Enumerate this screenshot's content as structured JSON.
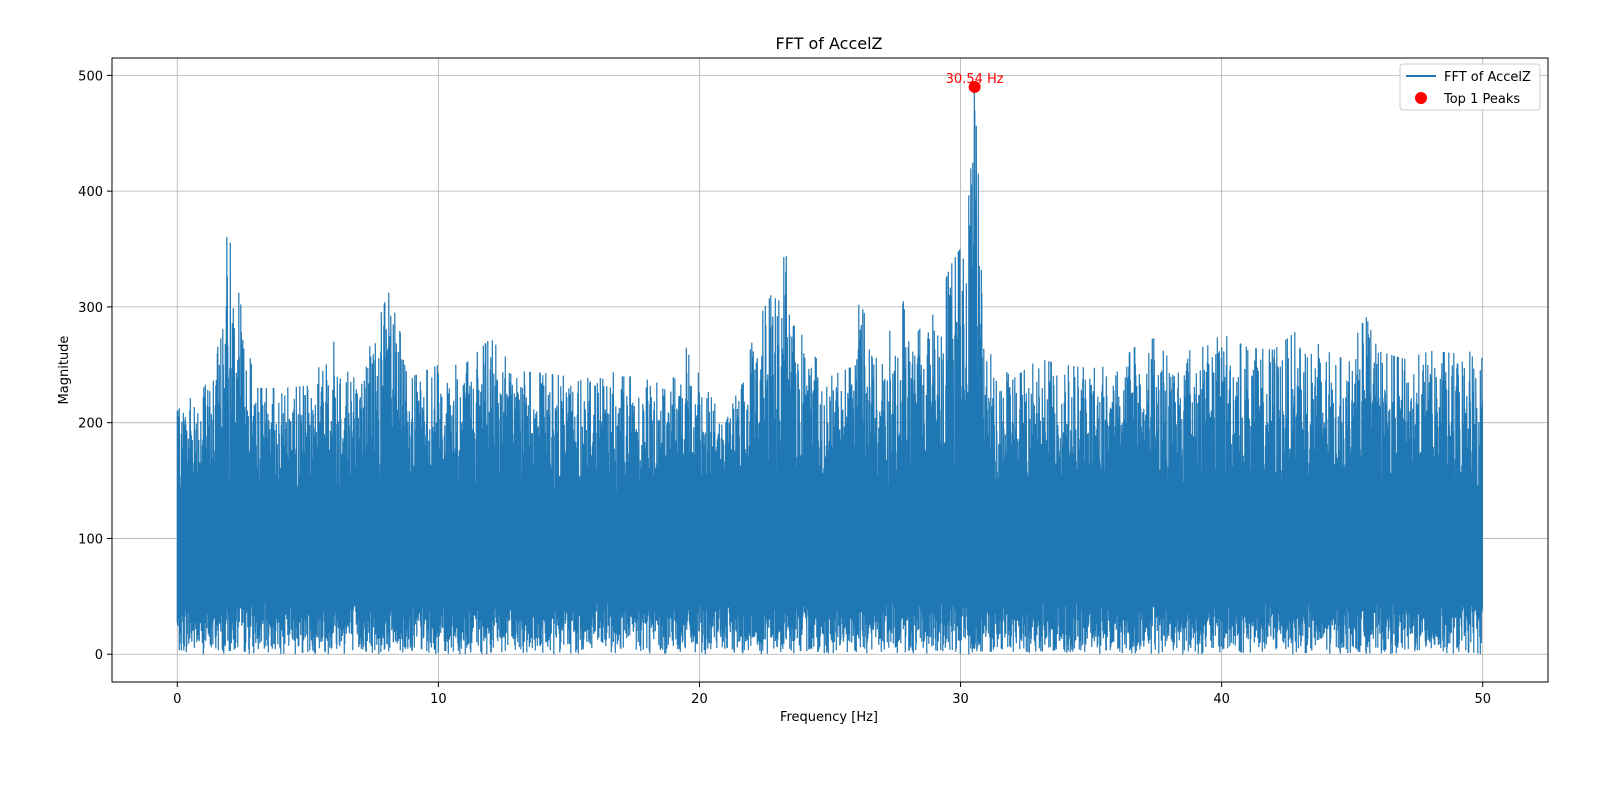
{
  "chart_data": {
    "type": "line",
    "title": "FFT of AccelZ",
    "xlabel": "Frequency [Hz]",
    "ylabel": "Magnitude",
    "xlim": [
      -2.5,
      52.5
    ],
    "ylim": [
      -24,
      515
    ],
    "xticks": [
      0,
      10,
      20,
      30,
      40,
      50
    ],
    "yticks": [
      0,
      100,
      200,
      300,
      400,
      500
    ],
    "grid": true,
    "legend_position": "top-right",
    "series": [
      {
        "name": "FFT of AccelZ",
        "color": "#1f77b4",
        "x_start": 0,
        "x_end": 50,
        "noise_floor": [
          0,
          100
        ],
        "envelope": [
          [
            0,
            210
          ],
          [
            0.5,
            225
          ],
          [
            1.0,
            230
          ],
          [
            1.5,
            250
          ],
          [
            1.9,
            373
          ],
          [
            2.5,
            293
          ],
          [
            3,
            230
          ],
          [
            4,
            230
          ],
          [
            5,
            232
          ],
          [
            6,
            270
          ],
          [
            7,
            240
          ],
          [
            7.5,
            275
          ],
          [
            8.1,
            314
          ],
          [
            9,
            240
          ],
          [
            10,
            250
          ],
          [
            11,
            250
          ],
          [
            12,
            273
          ],
          [
            13,
            245
          ],
          [
            14,
            243
          ],
          [
            15,
            240
          ],
          [
            16,
            252
          ],
          [
            17,
            240
          ],
          [
            18,
            240
          ],
          [
            19,
            245
          ],
          [
            19.5,
            276
          ],
          [
            20,
            240
          ],
          [
            21,
            200
          ],
          [
            21.5,
            230
          ],
          [
            22,
            278
          ],
          [
            22.8,
            313
          ],
          [
            23.3,
            348
          ],
          [
            23.6,
            300
          ],
          [
            24,
            270
          ],
          [
            25,
            240
          ],
          [
            26,
            250
          ],
          [
            26.1,
            307
          ],
          [
            27,
            255
          ],
          [
            27.8,
            322
          ],
          [
            28,
            270
          ],
          [
            29,
            295
          ],
          [
            29.6,
            335
          ],
          [
            30.1,
            355
          ],
          [
            30.4,
            446
          ],
          [
            30.54,
            490
          ],
          [
            30.8,
            350
          ],
          [
            31,
            263
          ],
          [
            32,
            238
          ],
          [
            33,
            255
          ],
          [
            34,
            250
          ],
          [
            35,
            247
          ],
          [
            36,
            250
          ],
          [
            36.7,
            266
          ],
          [
            37.4,
            273
          ],
          [
            38,
            255
          ],
          [
            38.7,
            262
          ],
          [
            39.5,
            267
          ],
          [
            40,
            277
          ],
          [
            41,
            265
          ],
          [
            42,
            263
          ],
          [
            43,
            282
          ],
          [
            44,
            262
          ],
          [
            45,
            252
          ],
          [
            45.4,
            300
          ],
          [
            46,
            262
          ],
          [
            47,
            255
          ],
          [
            48,
            262
          ],
          [
            49,
            260
          ],
          [
            49.5,
            270
          ],
          [
            50,
            255
          ]
        ]
      }
    ],
    "peaks": [
      {
        "x": 30.54,
        "y": 490,
        "label": "30.54 Hz"
      }
    ],
    "legend": [
      {
        "name": "FFT of AccelZ",
        "kind": "line",
        "color": "#1f77b4"
      },
      {
        "name": "Top 1 Peaks",
        "kind": "marker",
        "color": "#ff0000"
      }
    ]
  }
}
